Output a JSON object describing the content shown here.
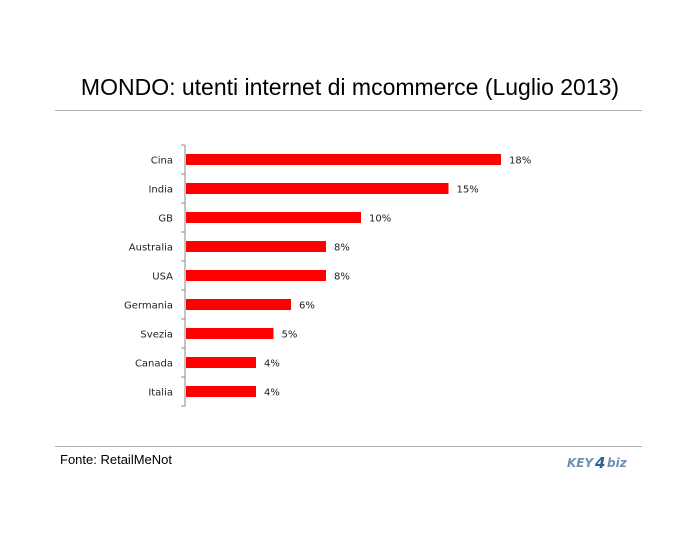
{
  "header": {
    "title": "MONDO: utenti internet di mcommerce (Luglio 2013)"
  },
  "footer": {
    "source": "Fonte: RetailMeNot",
    "logo_text": "KEY4biz"
  },
  "colors": {
    "bar": "#ff0000",
    "axis": "#888888"
  },
  "chart_data": {
    "type": "bar",
    "orientation": "horizontal",
    "title": "MONDO: utenti internet di mcommerce (Luglio 2013)",
    "categories": [
      "Cina",
      "India",
      "GB",
      "Australia",
      "USA",
      "Germania",
      "Svezia",
      "Canada",
      "Italia"
    ],
    "values": [
      18,
      15,
      10,
      8,
      8,
      6,
      5,
      4,
      4
    ],
    "value_labels": [
      "18%",
      "15%",
      "10%",
      "8%",
      "8%",
      "6%",
      "5%",
      "4%",
      "4%"
    ],
    "xlim": [
      0,
      20
    ],
    "grid": false,
    "legend": "none"
  }
}
